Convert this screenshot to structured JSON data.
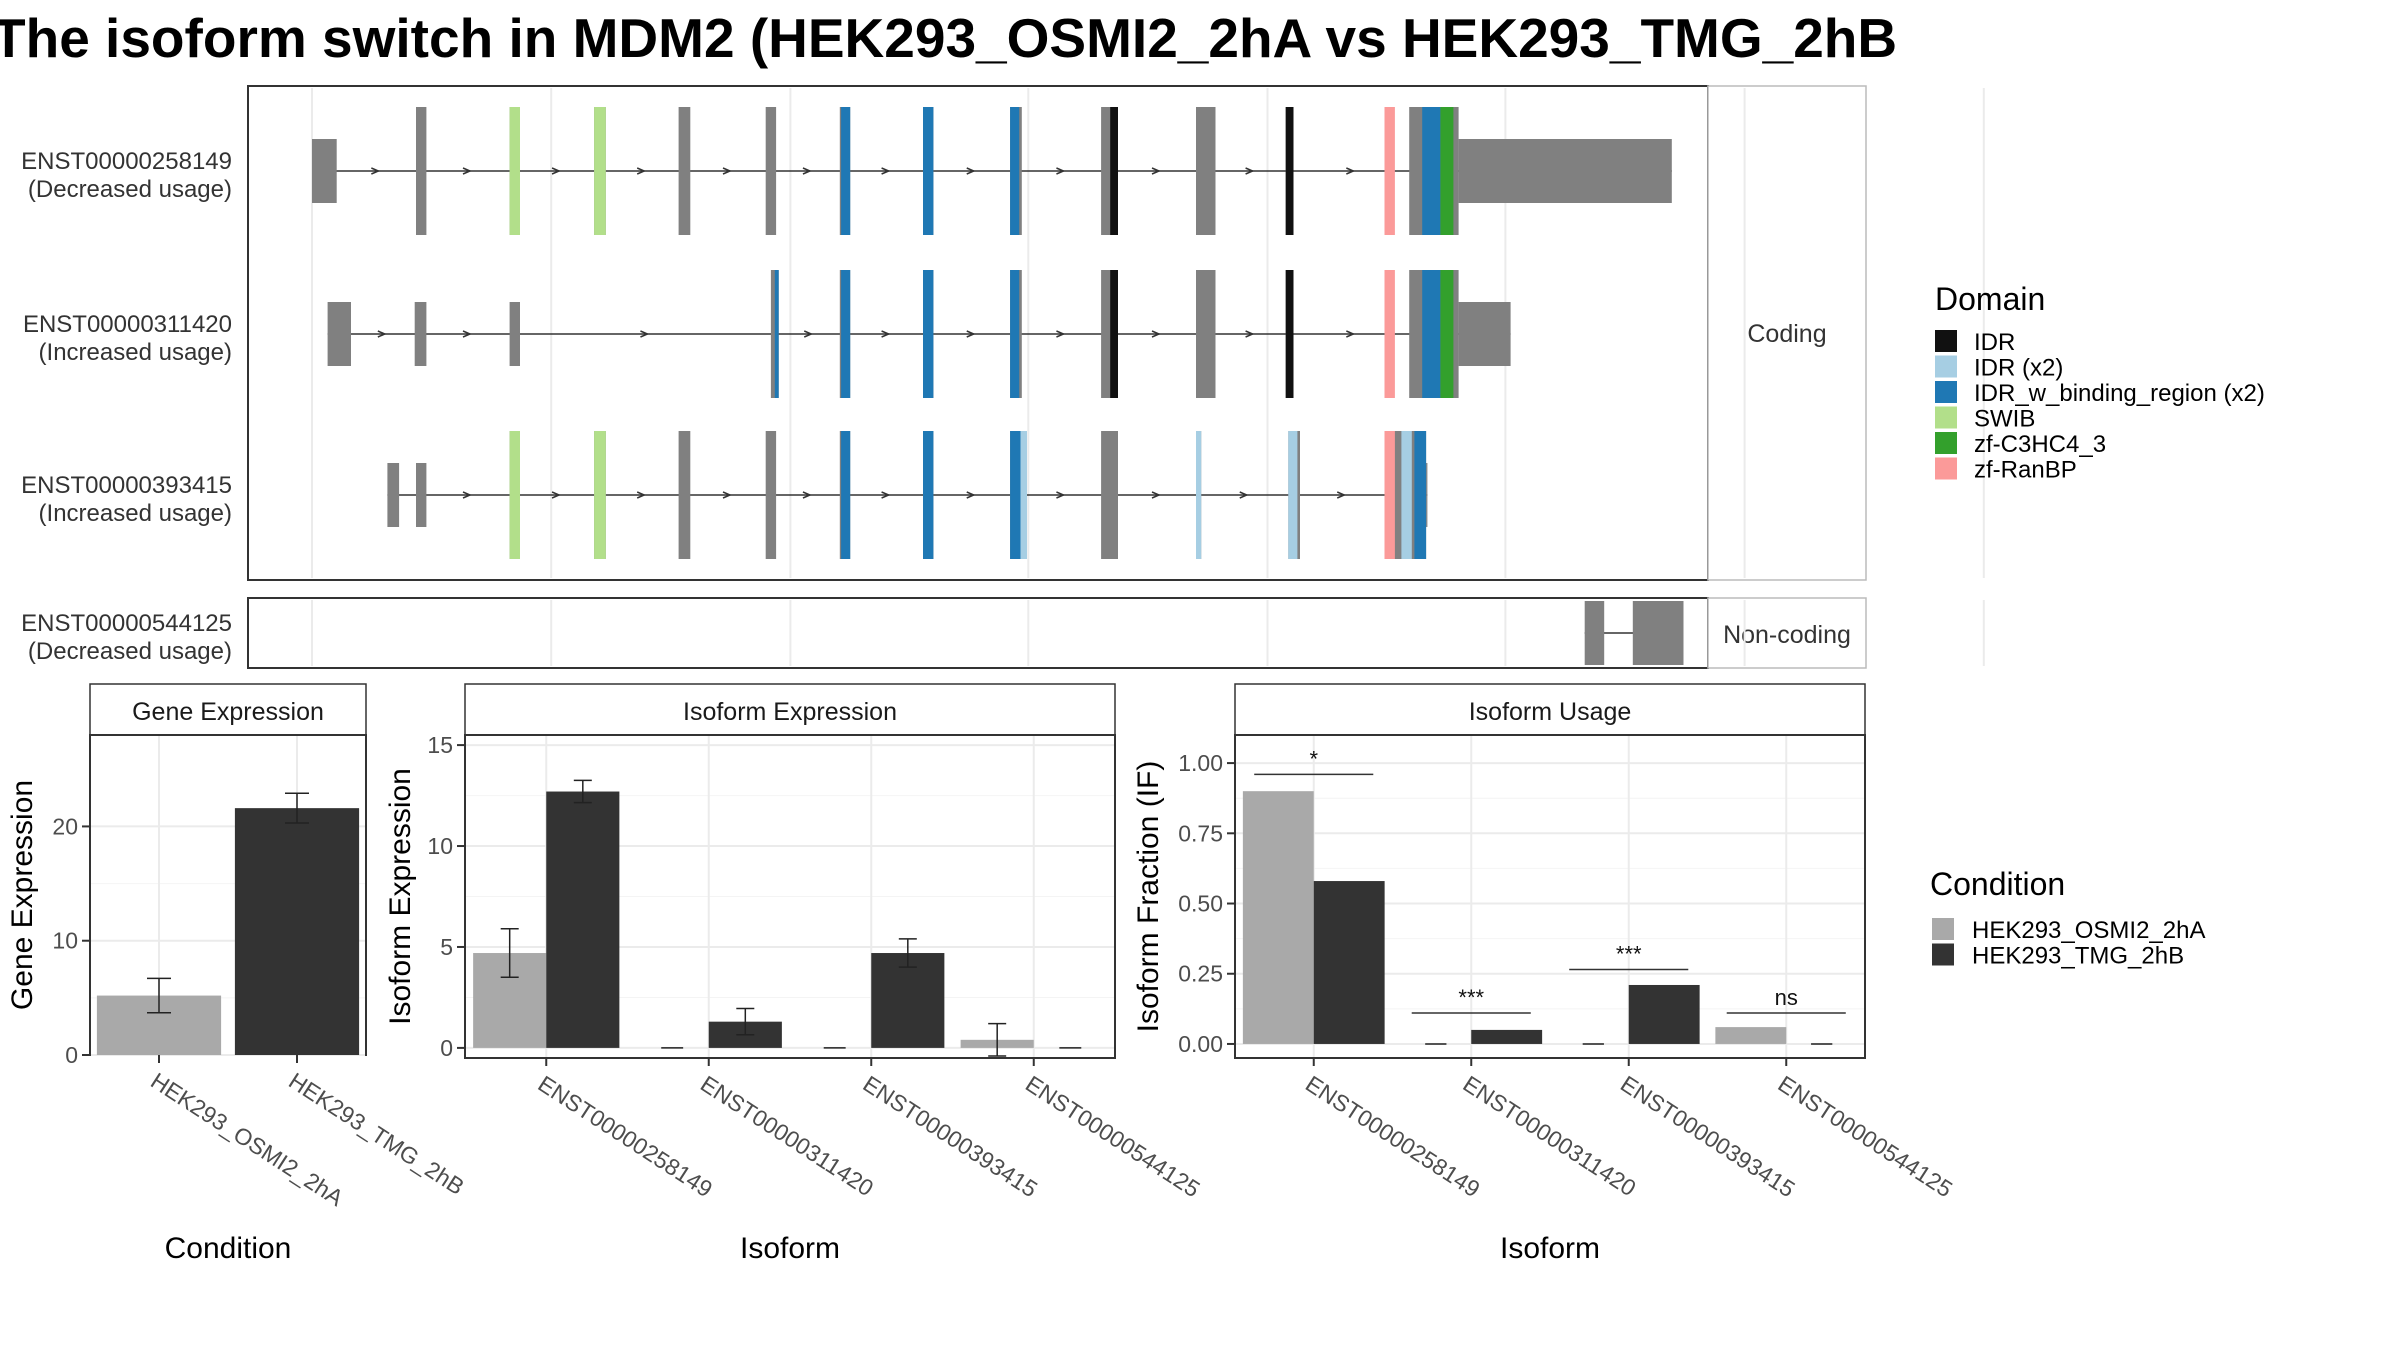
{
  "title": "The isoform switch in MDM2 (HEK293_OSMI2_2hA vs HEK293_TMG_2hB",
  "structure": {
    "coding_panel_label": "Coding",
    "noncoding_panel_label": "Non-coding",
    "isoforms": [
      {
        "id": "ENST00000258149",
        "usage": "(Decreased usage)",
        "coding": true,
        "utr5": [
          [
            0,
            19
          ]
        ],
        "cds": [
          [
            80,
            88
          ],
          [
            152,
            160
          ],
          [
            217,
            226
          ],
          [
            282,
            291
          ],
          [
            349,
            357
          ],
          [
            406,
            414
          ],
          [
            470,
            478
          ],
          [
            537,
            546
          ],
          [
            607,
            620
          ],
          [
            680,
            695
          ],
          [
            749,
            755
          ],
          [
            844,
            882
          ]
        ],
        "utr3": [
          [
            882,
            1046
          ]
        ],
        "domains": [
          {
            "type": "SWIB",
            "start": 152,
            "end": 160
          },
          {
            "type": "SWIB",
            "start": 217,
            "end": 226
          },
          {
            "type": "IDR_w_binding_region (x2)",
            "start": 407,
            "end": 414
          },
          {
            "type": "IDR_w_binding_region (x2)",
            "start": 470,
            "end": 478
          },
          {
            "type": "IDR_w_binding_region (x2)",
            "start": 537,
            "end": 544
          },
          {
            "type": "IDR",
            "start": 614,
            "end": 620
          },
          {
            "type": "IDR",
            "start": 749,
            "end": 755
          },
          {
            "type": "zf-RanBP",
            "start": 825,
            "end": 833
          },
          {
            "type": "IDR_w_binding_region (x2)",
            "start": 854,
            "end": 868
          },
          {
            "type": "zf-C3HC4_3",
            "start": 868,
            "end": 878
          }
        ]
      },
      {
        "id": "ENST00000311420",
        "usage": "(Increased usage)",
        "coding": true,
        "utr5": [
          [
            12,
            30
          ],
          [
            79,
            88
          ],
          [
            152,
            160
          ]
        ],
        "cds": [
          [
            353,
            359
          ],
          [
            406,
            414
          ],
          [
            470,
            478
          ],
          [
            537,
            546
          ],
          [
            607,
            620
          ],
          [
            680,
            695
          ],
          [
            749,
            755
          ],
          [
            844,
            882
          ]
        ],
        "utr3": [
          [
            882,
            922
          ]
        ],
        "domains": [
          {
            "type": "IDR_w_binding_region (x2)",
            "start": 356,
            "end": 359
          },
          {
            "type": "IDR_w_binding_region (x2)",
            "start": 407,
            "end": 414
          },
          {
            "type": "IDR_w_binding_region (x2)",
            "start": 470,
            "end": 478
          },
          {
            "type": "IDR_w_binding_region (x2)",
            "start": 537,
            "end": 544
          },
          {
            "type": "IDR",
            "start": 614,
            "end": 620
          },
          {
            "type": "IDR",
            "start": 749,
            "end": 755
          },
          {
            "type": "zf-RanBP",
            "start": 825,
            "end": 833
          },
          {
            "type": "IDR_w_binding_region (x2)",
            "start": 854,
            "end": 868
          },
          {
            "type": "zf-C3HC4_3",
            "start": 868,
            "end": 878
          }
        ]
      },
      {
        "id": "ENST00000393415",
        "usage": "(Increased usage)",
        "coding": true,
        "utr5": [
          [
            58,
            67
          ],
          [
            80,
            88
          ]
        ],
        "cds": [
          [
            152,
            160
          ],
          [
            217,
            226
          ],
          [
            282,
            291
          ],
          [
            349,
            357
          ],
          [
            406,
            414
          ],
          [
            470,
            478
          ],
          [
            537,
            546
          ],
          [
            607,
            620
          ],
          [
            680,
            684
          ],
          [
            751,
            760
          ],
          [
            825,
            857
          ]
        ],
        "utr3": [
          [
            857,
            858
          ]
        ],
        "domains": [
          {
            "type": "SWIB",
            "start": 152,
            "end": 160
          },
          {
            "type": "SWIB",
            "start": 217,
            "end": 226
          },
          {
            "type": "IDR_w_binding_region (x2)",
            "start": 407,
            "end": 414
          },
          {
            "type": "IDR_w_binding_region (x2)",
            "start": 470,
            "end": 478
          },
          {
            "type": "IDR_w_binding_region (x2)",
            "start": 537,
            "end": 546
          },
          {
            "type": "IDR (x2)",
            "start": 545,
            "end": 550
          },
          {
            "type": "IDR (x2)",
            "start": 680,
            "end": 684
          },
          {
            "type": "IDR (x2)",
            "start": 751,
            "end": 758
          },
          {
            "type": "zf-RanBP",
            "start": 825,
            "end": 833
          },
          {
            "type": "IDR (x2)",
            "start": 838,
            "end": 846
          },
          {
            "type": "IDR_w_binding_region (x2)",
            "start": 848,
            "end": 857
          }
        ]
      },
      {
        "id": "ENST00000544125",
        "usage": "(Decreased usage)",
        "coding": false,
        "exons": [
          [
            979,
            994
          ],
          [
            1016,
            1055
          ]
        ]
      }
    ],
    "intron_arrow_direction": "right",
    "domain_legend": {
      "title": "Domain",
      "entries": [
        {
          "label": "IDR",
          "color": "#111111"
        },
        {
          "label": "IDR (x2)",
          "color": "#a6cee3"
        },
        {
          "label": "IDR_w_binding_region (x2)",
          "color": "#1f78b4"
        },
        {
          "label": "SWIB",
          "color": "#b2df8a"
        },
        {
          "label": "zf-C3HC4_3",
          "color": "#33a02c"
        },
        {
          "label": "zf-RanBP",
          "color": "#fb9a99"
        }
      ]
    },
    "exon_color": "#808080"
  },
  "chart_data": [
    {
      "type": "bar",
      "title": "Gene Expression",
      "xlabel": "Condition",
      "ylabel": "Gene Expression",
      "ylim": [
        0,
        28
      ],
      "yticks": [
        0,
        10,
        20
      ],
      "categories": [
        "HEK293_OSMI2_2hA",
        "HEK293_TMG_2hB"
      ],
      "values": [
        5.2,
        21.6
      ],
      "errors": [
        1.5,
        1.3
      ],
      "colors": [
        "#a9a9a9",
        "#333333"
      ],
      "grid": true
    },
    {
      "type": "bar",
      "title": "Isoform Expression",
      "xlabel": "Isoform",
      "ylabel": "Isoform Expression",
      "ylim": [
        -0.5,
        15.5
      ],
      "yticks": [
        0,
        5,
        10,
        15
      ],
      "categories": [
        "ENST00000258149",
        "ENST00000311420",
        "ENST00000393415",
        "ENST00000544125"
      ],
      "series": [
        {
          "name": "HEK293_OSMI2_2hA",
          "color": "#a9a9a9",
          "values": [
            4.7,
            0,
            0,
            0.4
          ],
          "errors": [
            1.2,
            0,
            0,
            0.8
          ]
        },
        {
          "name": "HEK293_TMG_2hB",
          "color": "#333333",
          "values": [
            12.7,
            1.3,
            4.7,
            0
          ],
          "errors": [
            0.55,
            0.65,
            0.7,
            0
          ]
        }
      ],
      "grid": true
    },
    {
      "type": "bar",
      "title": "Isoform Usage",
      "xlabel": "Isoform",
      "ylabel": "Isoform Fraction (IF)",
      "ylim": [
        -0.05,
        1.1
      ],
      "yticks": [
        "0.00",
        "0.25",
        "0.50",
        "0.75",
        "1.00"
      ],
      "categories": [
        "ENST00000258149",
        "ENST00000311420",
        "ENST00000393415",
        "ENST00000544125"
      ],
      "series": [
        {
          "name": "HEK293_OSMI2_2hA",
          "color": "#a9a9a9",
          "values": [
            0.9,
            0,
            0,
            0.06
          ]
        },
        {
          "name": "HEK293_TMG_2hB",
          "color": "#333333",
          "values": [
            0.58,
            0.05,
            0.21,
            0
          ]
        }
      ],
      "significance": [
        {
          "label": "*",
          "y": 0.96
        },
        {
          "label": "***",
          "y": 0.11
        },
        {
          "label": "***",
          "y": 0.265
        },
        {
          "label": "ns",
          "y": 0.11
        }
      ],
      "grid": true
    }
  ],
  "condition_legend": {
    "title": "Condition",
    "entries": [
      {
        "label": "HEK293_OSMI2_2hA",
        "color": "#a9a9a9"
      },
      {
        "label": "HEK293_TMG_2hB",
        "color": "#333333"
      }
    ]
  }
}
